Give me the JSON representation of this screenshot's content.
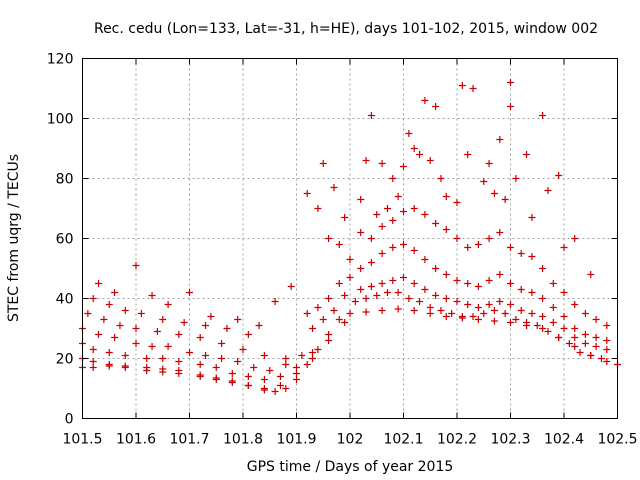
{
  "chart_data": {
    "type": "scatter",
    "title": "Rec. cedu (Lon=133, Lat=-31, h=HE), days 101-102, 2015, window 002",
    "xlabel": "GPS time / Days of year 2015",
    "ylabel": "STEC from uqrg / TECUs",
    "xlim": [
      101.5,
      102.5
    ],
    "ylim": [
      0,
      120
    ],
    "x_ticks": [
      101.5,
      101.6,
      101.7,
      101.8,
      101.9,
      102,
      102.1,
      102.2,
      102.3,
      102.4,
      102.5
    ],
    "x_tick_labels": [
      "101.5",
      "101.6",
      "101.7",
      "101.8",
      "101.9",
      "102",
      "102.1",
      "102.2",
      "102.3",
      "102.4",
      "102.5"
    ],
    "y_ticks": [
      0,
      20,
      40,
      60,
      80,
      100,
      120
    ],
    "y_tick_labels": [
      "0",
      "20",
      "40",
      "60",
      "80",
      "100",
      "120"
    ],
    "grid": true,
    "marker": "plus",
    "color": "#cc0000",
    "points": [
      [
        101.5,
        17
      ],
      [
        101.52,
        17
      ],
      [
        101.55,
        17.5
      ],
      [
        101.58,
        17
      ],
      [
        101.62,
        16
      ],
      [
        101.65,
        15.5
      ],
      [
        101.68,
        15
      ],
      [
        101.72,
        14
      ],
      [
        101.75,
        13
      ],
      [
        101.78,
        12
      ],
      [
        101.81,
        11
      ],
      [
        101.84,
        9.5
      ],
      [
        101.86,
        9
      ],
      [
        101.88,
        10
      ],
      [
        101.9,
        13
      ],
      [
        101.92,
        18
      ],
      [
        101.94,
        23
      ],
      [
        101.96,
        28
      ],
      [
        101.98,
        33
      ],
      [
        102.0,
        35
      ],
      [
        102.03,
        35.5
      ],
      [
        102.06,
        36
      ],
      [
        102.09,
        36.5
      ],
      [
        102.12,
        36
      ],
      [
        102.15,
        35
      ],
      [
        102.18,
        34
      ],
      [
        102.21,
        33.5
      ],
      [
        102.24,
        33
      ],
      [
        102.27,
        32.5
      ],
      [
        102.3,
        32
      ],
      [
        102.33,
        31
      ],
      [
        102.36,
        30
      ],
      [
        102.39,
        27
      ],
      [
        102.42,
        24
      ],
      [
        102.45,
        21
      ],
      [
        102.48,
        19
      ],
      [
        102.5,
        18
      ],
      [
        101.5,
        20
      ],
      [
        101.52,
        19
      ],
      [
        101.55,
        18
      ],
      [
        101.58,
        17.5
      ],
      [
        101.62,
        17
      ],
      [
        101.65,
        16.5
      ],
      [
        101.68,
        16
      ],
      [
        101.72,
        14.5
      ],
      [
        101.75,
        13.5
      ],
      [
        101.78,
        12.5
      ],
      [
        101.81,
        11
      ],
      [
        101.84,
        10
      ],
      [
        101.87,
        11
      ],
      [
        101.9,
        15
      ],
      [
        101.93,
        20
      ],
      [
        101.96,
        26
      ],
      [
        101.99,
        32
      ],
      [
        101.5,
        25
      ],
      [
        101.52,
        23
      ],
      [
        101.55,
        22
      ],
      [
        101.58,
        21
      ],
      [
        101.62,
        20
      ],
      [
        101.65,
        20
      ],
      [
        101.68,
        19
      ],
      [
        101.72,
        18
      ],
      [
        101.75,
        17
      ],
      [
        101.78,
        15
      ],
      [
        101.81,
        14
      ],
      [
        101.84,
        13
      ],
      [
        101.87,
        14
      ],
      [
        101.9,
        17
      ],
      [
        101.93,
        22
      ],
      [
        101.5,
        30
      ],
      [
        101.53,
        28
      ],
      [
        101.56,
        27
      ],
      [
        101.6,
        25
      ],
      [
        101.63,
        24
      ],
      [
        101.66,
        24
      ],
      [
        101.7,
        22
      ],
      [
        101.73,
        21
      ],
      [
        101.76,
        20
      ],
      [
        101.79,
        19
      ],
      [
        101.82,
        17
      ],
      [
        101.85,
        16
      ],
      [
        101.88,
        18
      ],
      [
        101.91,
        21
      ],
      [
        101.51,
        35
      ],
      [
        101.54,
        33
      ],
      [
        101.57,
        31
      ],
      [
        101.6,
        30
      ],
      [
        101.64,
        29
      ],
      [
        101.68,
        28
      ],
      [
        101.72,
        27
      ],
      [
        101.76,
        25
      ],
      [
        101.8,
        23
      ],
      [
        101.84,
        21
      ],
      [
        101.88,
        20
      ],
      [
        101.52,
        40
      ],
      [
        101.55,
        38
      ],
      [
        101.58,
        36
      ],
      [
        101.61,
        35
      ],
      [
        101.65,
        33
      ],
      [
        101.69,
        32
      ],
      [
        101.73,
        31
      ],
      [
        101.77,
        30
      ],
      [
        101.81,
        28
      ],
      [
        101.53,
        45
      ],
      [
        101.56,
        42
      ],
      [
        101.6,
        51
      ],
      [
        101.63,
        41
      ],
      [
        101.66,
        38
      ],
      [
        101.7,
        42
      ],
      [
        101.74,
        34
      ],
      [
        101.79,
        33
      ],
      [
        101.83,
        31
      ],
      [
        101.86,
        39
      ],
      [
        101.89,
        44
      ],
      [
        101.92,
        75
      ],
      [
        101.94,
        70
      ],
      [
        101.96,
        60
      ],
      [
        101.98,
        58
      ],
      [
        102.0,
        53
      ],
      [
        101.95,
        85
      ],
      [
        101.97,
        77
      ],
      [
        101.99,
        67
      ],
      [
        102.02,
        73
      ],
      [
        102.04,
        101
      ],
      [
        102.06,
        85
      ],
      [
        102.08,
        80
      ],
      [
        102.1,
        84
      ],
      [
        102.12,
        90
      ],
      [
        102.14,
        106
      ],
      [
        102.16,
        104
      ],
      [
        102.18,
        74
      ],
      [
        102.21,
        111
      ],
      [
        102.23,
        110
      ],
      [
        102.26,
        85
      ],
      [
        102.28,
        93
      ],
      [
        102.3,
        112
      ],
      [
        102.3,
        104
      ],
      [
        102.33,
        88
      ],
      [
        102.36,
        101
      ],
      [
        102.39,
        81
      ],
      [
        102.42,
        60
      ],
      [
        102.03,
        86
      ],
      [
        102.05,
        68
      ],
      [
        102.07,
        70
      ],
      [
        102.09,
        74
      ],
      [
        102.11,
        95
      ],
      [
        102.13,
        88
      ],
      [
        102.15,
        86
      ],
      [
        102.17,
        80
      ],
      [
        102.2,
        72
      ],
      [
        102.22,
        88
      ],
      [
        102.25,
        79
      ],
      [
        102.27,
        75
      ],
      [
        102.29,
        73
      ],
      [
        102.31,
        80
      ],
      [
        102.34,
        67
      ],
      [
        102.37,
        76
      ],
      [
        102.4,
        57
      ],
      [
        102.45,
        48
      ],
      [
        102.02,
        62
      ],
      [
        102.04,
        60
      ],
      [
        102.06,
        64
      ],
      [
        102.08,
        66
      ],
      [
        102.1,
        69
      ],
      [
        102.12,
        70
      ],
      [
        102.14,
        68
      ],
      [
        102.16,
        65
      ],
      [
        102.18,
        63
      ],
      [
        102.2,
        60
      ],
      [
        102.22,
        57
      ],
      [
        102.24,
        58
      ],
      [
        102.26,
        60
      ],
      [
        102.28,
        62
      ],
      [
        102.3,
        57
      ],
      [
        102.32,
        55
      ],
      [
        102.34,
        54
      ],
      [
        102.36,
        50
      ],
      [
        102.38,
        45
      ],
      [
        102.4,
        42
      ],
      [
        102.42,
        38
      ],
      [
        102.44,
        35
      ],
      [
        102.46,
        33
      ],
      [
        102.48,
        31
      ],
      [
        102.02,
        50
      ],
      [
        102.04,
        52
      ],
      [
        102.06,
        55
      ],
      [
        102.08,
        57
      ],
      [
        102.1,
        58
      ],
      [
        102.12,
        56
      ],
      [
        102.14,
        53
      ],
      [
        102.16,
        50
      ],
      [
        102.18,
        48
      ],
      [
        102.2,
        46
      ],
      [
        102.22,
        45
      ],
      [
        102.24,
        44
      ],
      [
        102.26,
        46
      ],
      [
        102.28,
        48
      ],
      [
        102.3,
        45
      ],
      [
        102.32,
        43
      ],
      [
        102.34,
        42
      ],
      [
        102.36,
        40
      ],
      [
        102.38,
        37
      ],
      [
        102.4,
        34
      ],
      [
        102.42,
        30
      ],
      [
        102.44,
        28
      ],
      [
        102.46,
        27
      ],
      [
        102.48,
        26
      ],
      [
        102.02,
        43
      ],
      [
        102.04,
        44
      ],
      [
        102.06,
        45
      ],
      [
        102.08,
        46
      ],
      [
        102.1,
        47
      ],
      [
        102.12,
        45
      ],
      [
        102.14,
        43
      ],
      [
        102.16,
        41
      ],
      [
        102.18,
        40
      ],
      [
        102.2,
        39
      ],
      [
        102.22,
        38
      ],
      [
        102.24,
        37
      ],
      [
        102.26,
        38
      ],
      [
        102.28,
        39
      ],
      [
        102.3,
        38
      ],
      [
        102.32,
        36
      ],
      [
        102.34,
        35
      ],
      [
        102.36,
        34
      ],
      [
        102.38,
        32
      ],
      [
        102.4,
        30
      ],
      [
        102.42,
        27
      ],
      [
        102.44,
        25
      ],
      [
        102.46,
        24
      ],
      [
        102.48,
        23
      ],
      [
        102.01,
        39
      ],
      [
        102.03,
        40
      ],
      [
        102.05,
        41
      ],
      [
        102.07,
        42
      ],
      [
        102.09,
        42
      ],
      [
        102.11,
        40
      ],
      [
        102.13,
        39
      ],
      [
        102.15,
        37
      ],
      [
        102.17,
        36
      ],
      [
        102.19,
        35
      ],
      [
        102.21,
        34
      ],
      [
        102.23,
        34
      ],
      [
        102.25,
        35
      ],
      [
        102.27,
        36
      ],
      [
        102.29,
        35
      ],
      [
        102.31,
        33
      ],
      [
        102.33,
        32
      ],
      [
        102.35,
        31
      ],
      [
        102.37,
        29
      ],
      [
        102.39,
        27
      ],
      [
        102.41,
        25
      ],
      [
        102.43,
        22
      ],
      [
        102.45,
        21
      ],
      [
        102.47,
        20
      ],
      [
        101.92,
        35
      ],
      [
        101.94,
        37
      ],
      [
        101.96,
        40
      ],
      [
        101.98,
        45
      ],
      [
        102.0,
        47
      ],
      [
        101.93,
        30
      ],
      [
        101.95,
        33
      ],
      [
        101.97,
        36
      ],
      [
        101.99,
        41
      ]
    ]
  }
}
